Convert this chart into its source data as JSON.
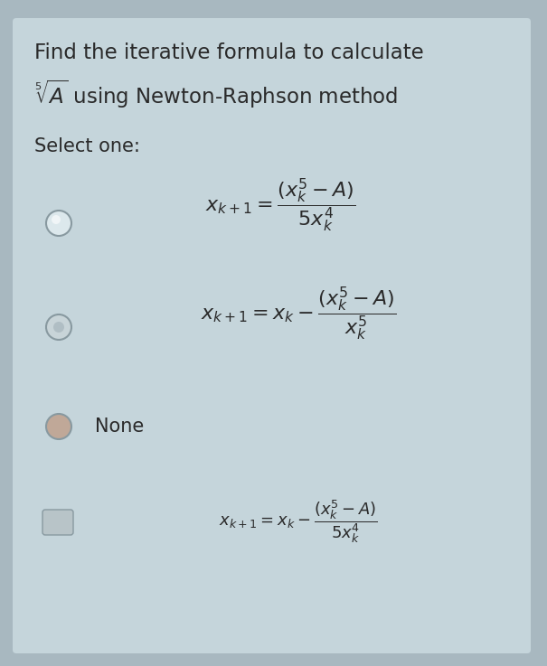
{
  "bg_color": "#a8b8c0",
  "card_color": "#c5d5db",
  "text_color": "#2a2a2a",
  "title_line1": "Find the iterative formula to calculate",
  "select_one": "Select one:",
  "title_fontsize": 16.5,
  "body_fontsize": 15,
  "formula_fontsize_large": 16,
  "formula_fontsize_small": 13,
  "radio1_face": "#e8eef0",
  "radio2_face": "#c0ccce",
  "radio3_face": "#b8a898",
  "radio4_face": "#b0b8bc"
}
